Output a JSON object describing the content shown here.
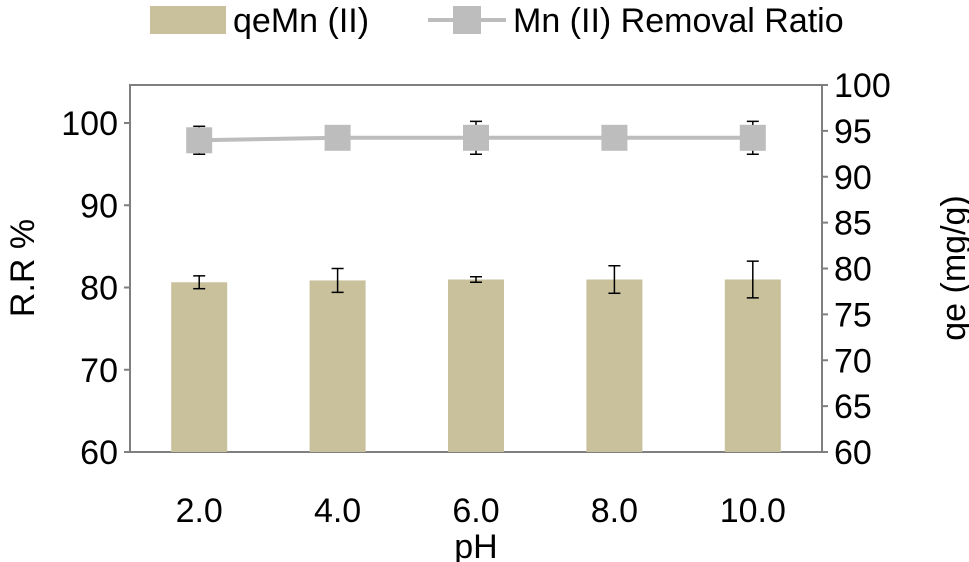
{
  "chart_data": {
    "type": "bar",
    "categories": [
      "2.0",
      "4.0",
      "6.0",
      "8.0",
      "10.0"
    ],
    "xlabel": "pH",
    "ylabel_left": "R.R %",
    "ylabel_right": "qe (mg/g)",
    "left_axis": {
      "ylim": [
        60,
        100
      ],
      "ticks": [
        "60",
        "70",
        "80",
        "90",
        "100"
      ]
    },
    "right_axis": {
      "ylim": [
        60,
        100
      ],
      "ticks": [
        "60",
        "65",
        "70",
        "75",
        "80",
        "85",
        "90",
        "95",
        "100"
      ]
    },
    "series": [
      {
        "name": "qeMn (II)",
        "kind": "bar",
        "axis": "right",
        "color": "#c9c09c",
        "values": [
          78.5,
          78.7,
          78.8,
          78.8,
          78.8
        ],
        "error": [
          0.7,
          1.3,
          0.3,
          1.5,
          2.0
        ]
      },
      {
        "name": "Mn (II) Removal Ratio",
        "kind": "line",
        "axis": "left",
        "color": "#bdbdbd",
        "values": [
          97.9,
          98.2,
          98.2,
          98.2,
          98.2
        ],
        "error": [
          1.7,
          0.0,
          2.0,
          0.0,
          2.0
        ]
      }
    ],
    "grid": false,
    "legend": "top"
  }
}
